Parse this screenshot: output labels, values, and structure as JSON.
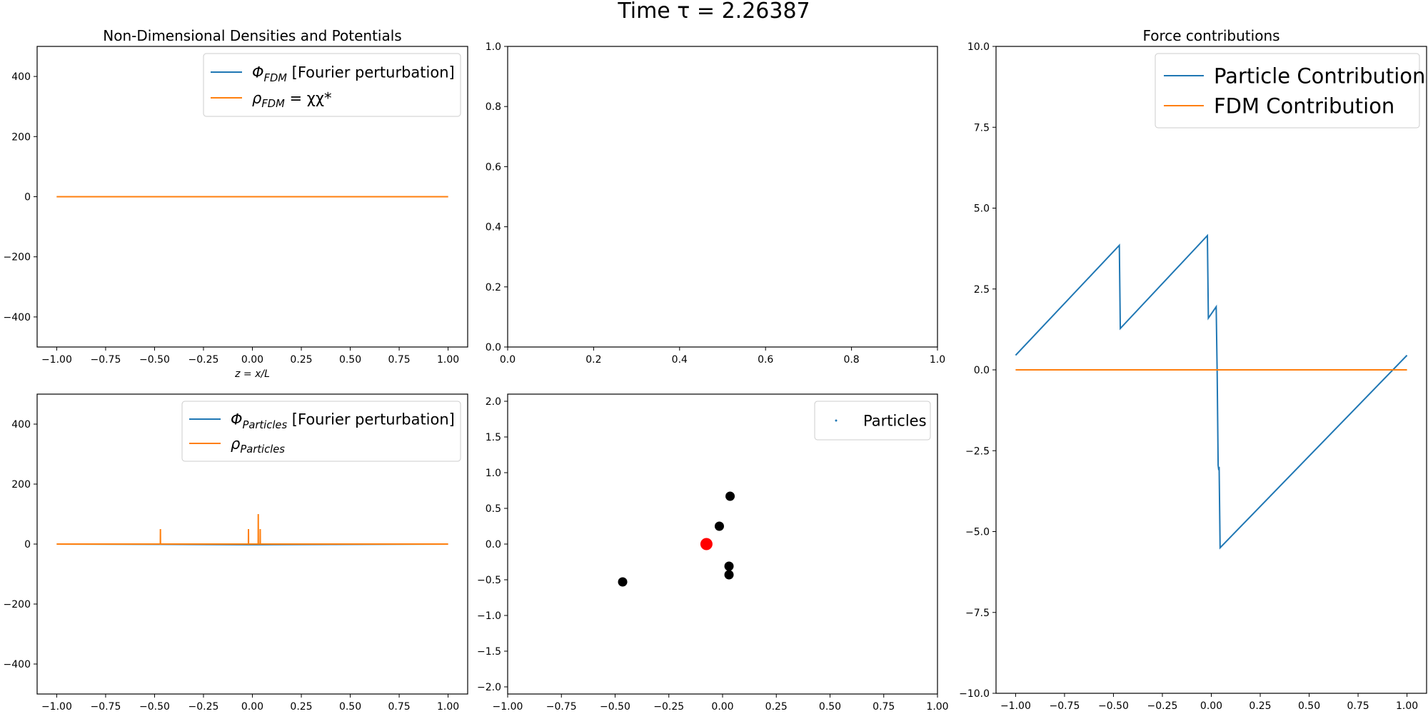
{
  "figure": {
    "suptitle": "Time τ = 2.26387"
  },
  "colors": {
    "blue": "#1f77b4",
    "orange": "#ff7f0e",
    "particle": "#000000",
    "highlight": "#ff0000"
  },
  "chart_data": [
    {
      "id": "densities-top",
      "type": "line",
      "title": "Non-Dimensional Densities and Potentials",
      "xlabel": "z = x/L",
      "ylabel": "",
      "xlim": [
        -1.1,
        1.1
      ],
      "ylim": [
        -500,
        500
      ],
      "xticks": [
        -1.0,
        -0.75,
        -0.5,
        -0.25,
        0.0,
        0.25,
        0.5,
        0.75,
        1.0
      ],
      "xtick_labels": [
        "−1.00",
        "−0.75",
        "−0.50",
        "−0.25",
        "0.00",
        "0.25",
        "0.50",
        "0.75",
        "1.00"
      ],
      "yticks": [
        -400,
        -200,
        0,
        200,
        400
      ],
      "ytick_labels": [
        "−400",
        "−200",
        "0",
        "200",
        "400"
      ],
      "legend": "top-right",
      "series": [
        {
          "name": "Φ_FDM [Fourier perturbation]",
          "color": "#1f77b4",
          "x": [
            -1.0,
            1.0
          ],
          "y": [
            0,
            0
          ]
        },
        {
          "name": "ρ_FDM = χχ*",
          "color": "#ff7f0e",
          "x": [
            -1.0,
            1.0
          ],
          "y": [
            0,
            0
          ]
        }
      ]
    },
    {
      "id": "empty-top",
      "type": "line",
      "title": "",
      "xlim": [
        0,
        1
      ],
      "ylim": [
        0,
        1
      ],
      "xticks": [
        0.0,
        0.2,
        0.4,
        0.6,
        0.8,
        1.0
      ],
      "xtick_labels": [
        "0.0",
        "0.2",
        "0.4",
        "0.6",
        "0.8",
        "1.0"
      ],
      "yticks": [
        0.0,
        0.2,
        0.4,
        0.6,
        0.8,
        1.0
      ],
      "ytick_labels": [
        "0.0",
        "0.2",
        "0.4",
        "0.6",
        "0.8",
        "1.0"
      ],
      "series": []
    },
    {
      "id": "force",
      "type": "line",
      "title": "Force contributions",
      "xlim": [
        -1.1,
        1.1
      ],
      "ylim": [
        -10,
        10
      ],
      "xticks": [
        -1.0,
        -0.75,
        -0.5,
        -0.25,
        0.0,
        0.25,
        0.5,
        0.75,
        1.0
      ],
      "xtick_labels": [
        "−1.00",
        "−0.75",
        "−0.50",
        "−0.25",
        "0.00",
        "0.25",
        "0.50",
        "0.75",
        "1.00"
      ],
      "yticks": [
        -10,
        -7.5,
        -5,
        -2.5,
        0,
        2.5,
        5,
        7.5,
        10
      ],
      "ytick_labels": [
        "−10.0",
        "−7.5",
        "−5.0",
        "−2.5",
        "0.0",
        "2.5",
        "5.0",
        "7.5",
        "10.0"
      ],
      "legend": "top-right",
      "series": [
        {
          "name": "Particle Contribution",
          "color": "#1f77b4",
          "x": [
            -1.0,
            -0.47,
            -0.465,
            -0.02,
            -0.015,
            0.025,
            0.03,
            0.035,
            0.038,
            0.04,
            0.045,
            1.0
          ],
          "y": [
            0.45,
            3.85,
            1.28,
            4.15,
            1.6,
            1.95,
            -0.1,
            -2.95,
            -3.1,
            -3.0,
            -5.5,
            0.45
          ]
        },
        {
          "name": "FDM Contribution",
          "color": "#ff7f0e",
          "x": [
            -1.0,
            1.0
          ],
          "y": [
            0,
            0
          ]
        }
      ]
    },
    {
      "id": "particles-density",
      "type": "line",
      "title": "",
      "xlim": [
        -1.1,
        1.1
      ],
      "ylim": [
        -500,
        500
      ],
      "xticks": [
        -1.0,
        -0.75,
        -0.5,
        -0.25,
        0.0,
        0.25,
        0.5,
        0.75,
        1.0
      ],
      "xtick_labels": [
        "−1.00",
        "−0.75",
        "−0.50",
        "−0.25",
        "0.00",
        "0.25",
        "0.50",
        "0.75",
        "1.00"
      ],
      "yticks": [
        -400,
        -200,
        0,
        200,
        400
      ],
      "ytick_labels": [
        "−400",
        "−200",
        "0",
        "200",
        "400"
      ],
      "legend": "top-right",
      "series": [
        {
          "name": "Φ_Particles [Fourier perturbation]",
          "color": "#1f77b4",
          "x": [
            -1.0,
            -0.47,
            -0.02,
            0.03,
            1.0
          ],
          "y": [
            0,
            -1,
            -2,
            -2,
            0
          ]
        },
        {
          "name": "ρ_Particles",
          "color": "#ff7f0e",
          "x": [
            -1.0,
            -0.4705,
            -0.47,
            -0.4695,
            -0.0205,
            -0.02,
            -0.0195,
            0.0295,
            0.03,
            0.0305,
            0.0395,
            0.04,
            0.0405,
            1.0
          ],
          "y": [
            0,
            0,
            50,
            0,
            0,
            50,
            0,
            0,
            100,
            0,
            0,
            50,
            0,
            0
          ]
        }
      ]
    },
    {
      "id": "phase-space",
      "type": "scatter",
      "title": "",
      "xlim": [
        -1.0,
        1.0
      ],
      "ylim": [
        -2.1,
        2.1
      ],
      "xticks": [
        -1.0,
        -0.75,
        -0.5,
        -0.25,
        0.0,
        0.25,
        0.5,
        0.75,
        1.0
      ],
      "xtick_labels": [
        "−1.00",
        "−0.75",
        "−0.50",
        "−0.25",
        "0.00",
        "0.25",
        "0.50",
        "0.75",
        "1.00"
      ],
      "yticks": [
        -2.0,
        -1.5,
        -1.0,
        -0.5,
        0.0,
        0.5,
        1.0,
        1.5,
        2.0
      ],
      "ytick_labels": [
        "−2.0",
        "−1.5",
        "−1.0",
        "−0.5",
        "0.0",
        "0.5",
        "1.0",
        "1.5",
        "2.0"
      ],
      "legend": "top-right",
      "series": [
        {
          "name": "Particles",
          "color": "#1f77b4",
          "x": [
            -0.465,
            -0.015,
            0.035,
            0.03,
            0.03
          ],
          "y": [
            -0.53,
            0.25,
            0.67,
            -0.31,
            -0.43
          ]
        }
      ],
      "highlight": {
        "x": -0.075,
        "y": 0.0
      }
    }
  ]
}
